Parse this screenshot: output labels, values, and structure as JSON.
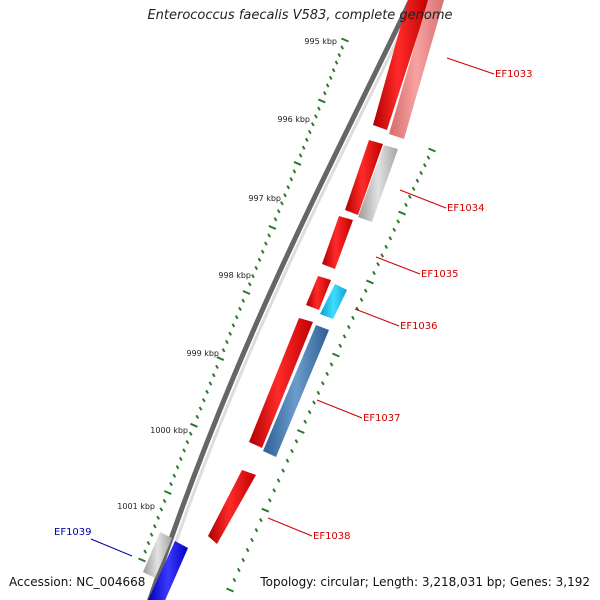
{
  "title": "Enterococcus faecalis V583, complete genome",
  "footer": {
    "accession": "Accession: NC_004668",
    "summary": "Topology: circular; Length: 3,218,031 bp; Genes: 3,192"
  },
  "colors": {
    "forward_cds": "#ff1a1a",
    "forward_pale": "#f08a8a",
    "gray_feature": "#c4c4c4",
    "cyan_feature": "#20c8f0",
    "steel_feature": "#4a7ab0",
    "blue_feature": "#1414ee",
    "tick_green": "#2a7a2a",
    "label_red": "#cc0000",
    "label_blue": "#0000aa"
  },
  "ticks": [
    {
      "label": "995 kbp"
    },
    {
      "label": "996 kbp"
    },
    {
      "label": "997 kbp"
    },
    {
      "label": "998 kbp"
    },
    {
      "label": "999 kbp"
    },
    {
      "label": "1000 kbp"
    },
    {
      "label": "1001 kbp"
    }
  ],
  "gene_labels": [
    {
      "name": "EF1033",
      "color": "red"
    },
    {
      "name": "EF1034",
      "color": "red"
    },
    {
      "name": "EF1035",
      "color": "red"
    },
    {
      "name": "EF1036",
      "color": "red"
    },
    {
      "name": "EF1037",
      "color": "red"
    },
    {
      "name": "EF1038",
      "color": "red"
    },
    {
      "name": "EF1039",
      "color": "blue"
    }
  ]
}
